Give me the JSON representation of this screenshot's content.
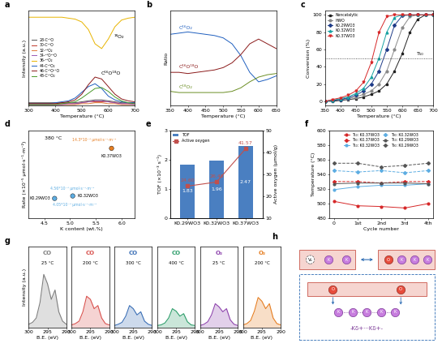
{
  "panel_labels": [
    "a",
    "b",
    "c",
    "d",
    "e",
    "f",
    "g",
    "h"
  ],
  "chart_data": [
    {
      "type": "line",
      "xlabel": "Temperature (°C)",
      "ylabel": "Intensity (a.u.)",
      "x": [
        300,
        325,
        350,
        375,
        400,
        425,
        450,
        475,
        500,
        525,
        550,
        575,
        600,
        625,
        650,
        675,
        700
      ],
      "xlim": [
        300,
        700
      ],
      "xticks": [
        300,
        400,
        500,
        600,
        700
      ],
      "ylim": [
        0,
        10
      ],
      "tick_labels": "x",
      "legend": "center left",
      "series": [
        {
          "name": "28-C¹⁶O",
          "color": "#555555",
          "values": [
            0.3,
            0.3,
            0.3,
            0.3,
            0.3,
            0.3,
            0.3,
            0.3,
            0.4,
            0.5,
            0.6,
            0.6,
            0.5,
            0.4,
            0.3,
            0.3,
            0.3
          ]
        },
        {
          "name": "30-C¹⁸O",
          "color": "#c0392b",
          "values": [
            0.2,
            0.2,
            0.2,
            0.2,
            0.2,
            0.2,
            0.2,
            0.2,
            0.3,
            0.4,
            0.4,
            0.4,
            0.4,
            0.3,
            0.2,
            0.2,
            0.2
          ]
        },
        {
          "name": "32-¹⁶O₂",
          "color": "#e07b39",
          "values": [
            0.1,
            0.1,
            0.1,
            0.1,
            0.1,
            0.1,
            0.1,
            0.1,
            0.2,
            0.2,
            0.3,
            0.3,
            0.2,
            0.2,
            0.1,
            0.1,
            0.1
          ]
        },
        {
          "name": "34-¹⁶O¹⁸O",
          "color": "#9b59b6",
          "values": [
            0.1,
            0.1,
            0.1,
            0.1,
            0.1,
            0.1,
            0.2,
            0.2,
            0.3,
            0.4,
            0.5,
            0.5,
            0.4,
            0.3,
            0.2,
            0.2,
            0.1
          ]
        },
        {
          "name": "36-¹⁸O₂",
          "color": "#e8b400",
          "values": [
            9.3,
            9.3,
            9.3,
            9.3,
            9.3,
            9.3,
            9.2,
            9.1,
            8.8,
            8.0,
            6.5,
            6.0,
            7.0,
            8.3,
            9.0,
            9.2,
            9.3
          ]
        },
        {
          "name": "44-C¹⁶O₂",
          "color": "#1f5fbf",
          "values": [
            0.2,
            0.2,
            0.2,
            0.2,
            0.3,
            0.4,
            0.5,
            0.8,
            1.4,
            2.0,
            2.3,
            1.8,
            1.0,
            0.6,
            0.4,
            0.3,
            0.3
          ]
        },
        {
          "name": "46-C¹⁶O¹⁸O",
          "color": "#8b1a1a",
          "values": [
            0.2,
            0.2,
            0.2,
            0.2,
            0.2,
            0.3,
            0.4,
            0.6,
            1.2,
            2.2,
            3.0,
            2.8,
            2.0,
            1.2,
            0.7,
            0.5,
            0.4
          ]
        },
        {
          "name": "48-C¹⁸O₂",
          "color": "#4a9a2a",
          "values": [
            0.1,
            0.1,
            0.1,
            0.1,
            0.1,
            0.2,
            0.3,
            0.4,
            0.8,
            1.3,
            1.8,
            1.9,
            1.5,
            0.9,
            0.5,
            0.3,
            0.2
          ]
        }
      ],
      "annotations": [
        {
          "text": "¹⁸O₂",
          "x": 640,
          "y": 7.0
        },
        {
          "text": "C¹⁶O¹⁸O",
          "x": 610,
          "y": 3.2
        }
      ]
    },
    {
      "type": "line",
      "xlabel": "Temperature (°C)",
      "ylabel": "Ratio",
      "x": [
        350,
        375,
        400,
        425,
        450,
        475,
        500,
        525,
        550,
        575,
        600,
        625,
        650
      ],
      "xlim": [
        350,
        650
      ],
      "xticks": [
        350,
        400,
        450,
        500,
        550,
        600,
        650
      ],
      "ylim": [
        0,
        80
      ],
      "tick_labels": "x",
      "series": [
        {
          "name": "C¹⁶O₂",
          "color": "#1f5fbf",
          "values": [
            60,
            61,
            62,
            61,
            60,
            59,
            57,
            52,
            42,
            28,
            20,
            22,
            25
          ]
        },
        {
          "name": "C¹⁶O¹⁸O",
          "color": "#8b1a1a",
          "values": [
            28,
            28,
            27,
            28,
            29,
            30,
            32,
            36,
            43,
            52,
            56,
            52,
            48
          ]
        },
        {
          "name": "C¹⁸O₂",
          "color": "#6b8e23",
          "values": [
            12,
            11,
            11,
            11,
            11,
            11,
            11,
            12,
            15,
            20,
            24,
            26,
            27
          ]
        }
      ]
    },
    {
      "type": "line",
      "xlabel": "Temperature (°C)",
      "ylabel": "Conversion (%)",
      "x": [
        350,
        375,
        400,
        425,
        450,
        475,
        500,
        525,
        550,
        575,
        600,
        625,
        650,
        675,
        700
      ],
      "xlim": [
        350,
        700
      ],
      "xticks": [
        350,
        400,
        450,
        500,
        550,
        600,
        650,
        700
      ],
      "ylim": [
        -5,
        105
      ],
      "yticks": [
        0,
        20,
        40,
        60,
        80,
        100
      ],
      "legend": "upper left",
      "hline": 50,
      "series": [
        {
          "name": "Noncatalytic",
          "color": "#222222",
          "marker": "square",
          "values": [
            0,
            0,
            1,
            2,
            3,
            5,
            8,
            12,
            20,
            35,
            55,
            80,
            95,
            100,
            100
          ]
        },
        {
          "name": "HWO",
          "color": "#888888",
          "marker": "circle",
          "values": [
            0,
            1,
            2,
            3,
            5,
            8,
            12,
            20,
            35,
            60,
            85,
            98,
            100,
            100,
            100
          ]
        },
        {
          "name": "K0.29WO3",
          "color": "#1f3c88",
          "marker": "diamond",
          "values": [
            0,
            1,
            2,
            4,
            7,
            12,
            20,
            35,
            60,
            88,
            99,
            100,
            100,
            100,
            100
          ]
        },
        {
          "name": "K0.32WO3",
          "color": "#17a2a2",
          "marker": "triangle",
          "values": [
            0,
            1,
            3,
            5,
            9,
            15,
            28,
            50,
            80,
            97,
            100,
            100,
            100,
            100,
            100
          ]
        },
        {
          "name": "K0.37WO3",
          "color": "#d62728",
          "marker": "triangle_down",
          "values": [
            0,
            2,
            4,
            7,
            12,
            22,
            45,
            80,
            98,
            100,
            100,
            100,
            100,
            100,
            100
          ]
        }
      ],
      "annotations": [
        {
          "text": "T₅₀",
          "x": 660,
          "y": 52
        }
      ]
    },
    {
      "type": "scatter",
      "xlabel": "K content (wt.%)",
      "ylabel": "Rate (×10⁻⁵ μmol·s⁻¹·m⁻²)",
      "x": [
        4.7,
        5.05,
        5.8
      ],
      "values": [
        4.05,
        4.56,
        14.3
      ],
      "value_labels": [
        "4.05*10⁻⁵ μmol·s⁻¹·m⁻²",
        "4.56*10⁻⁵ μmol·s⁻¹·m⁻²",
        "14.3*10⁻⁵ μmol·s⁻¹·m⁻²"
      ],
      "names": [
        "K0.29WO3",
        "K0.32WO3",
        "K0.37WO3"
      ],
      "colors": [
        "#5dade2",
        "#5dade2",
        "#e67e22"
      ],
      "xlim": [
        4.2,
        6.25
      ],
      "xticks": [
        4.5,
        {
          "value": 5.0,
          "label": "5.0"
        },
        5.5,
        {
          "value": 6.0,
          "label": "6.0"
        }
      ],
      "ylim": [
        0,
        18
      ],
      "tick_labels": "x",
      "annotations": [
        {
          "text": "380 °C",
          "x": 4.5,
          "y": 16
        }
      ]
    },
    {
      "type": "bar",
      "categories": [
        "K0.29WO3",
        "K0.32WO3",
        "K0.37WO3"
      ],
      "ylabel": "TOF (×10⁻³ s⁻¹)",
      "ylim": [
        0,
        3
      ],
      "yticks": [
        0,
        1,
        2,
        3
      ],
      "y2label": "Active oxygen (μmol/g)",
      "y2lim": [
        10,
        50
      ],
      "y2ticks": [
        10,
        20,
        30,
        40,
        50
      ],
      "legend": "upper left",
      "data_labels": true,
      "series": [
        {
          "name": "TOF",
          "type": "bar",
          "color": "#4a7fc1",
          "values": [
            1.83,
            1.96,
            2.47
          ]
        },
        {
          "name": "Active oxygen",
          "type": "line",
          "axis": "y2",
          "color": "#c0504d",
          "marker": "square",
          "values": [
            24.6,
            26.45,
            41.57
          ],
          "value_labels": [
            "24.60",
            "26.45",
            "41.57"
          ]
        }
      ]
    },
    {
      "type": "line",
      "xlabel": "Cycle number",
      "ylabel": "Temperature (°C)",
      "categories": [
        "0",
        "1st",
        "2nd",
        "3rd",
        "4th"
      ],
      "ylim": [
        480,
        600
      ],
      "yticks": [
        480,
        500,
        520,
        540,
        560,
        580,
        600
      ],
      "legend": "upper center",
      "series": [
        {
          "name": "T₅₀: K0.37WO3",
          "color": "#d62728",
          "marker": "circle",
          "values": [
            503,
            497,
            496,
            494,
            500
          ]
        },
        {
          "name": "T₉₀: K0.37WO3",
          "color": "#d62728",
          "marker": "diamond",
          "line_style": "dashed",
          "values": [
            530,
            530,
            528,
            530,
            530
          ]
        },
        {
          "name": "T₅₀: K0.32WO3",
          "color": "#5dade2",
          "marker": "circle",
          "values": [
            519,
            523,
            525,
            525,
            527
          ]
        },
        {
          "name": "T₉₀: K0.32WO3",
          "color": "#5dade2",
          "marker": "diamond",
          "line_style": "dashed",
          "values": [
            545,
            543,
            545,
            542,
            545
          ]
        },
        {
          "name": "T₅₀: K0.29WO3",
          "color": "#555555",
          "marker": "circle",
          "values": [
            527,
            528,
            528,
            528,
            527
          ]
        },
        {
          "name": "T₉₀: K0.29WO3",
          "color": "#555555",
          "marker": "diamond",
          "line_style": "dashed",
          "values": [
            555,
            555,
            550,
            552,
            555
          ]
        }
      ]
    },
    {
      "type": "line",
      "title": "CO",
      "subtitle": "25 °C",
      "xlabel": "B.E. (eV)",
      "ylabel": "Intensity (a.u.)",
      "x": [
        300,
        299,
        298,
        297,
        296,
        295,
        294,
        293,
        292,
        291,
        290
      ],
      "xlim": [
        300,
        290
      ],
      "xticks": [
        300,
        295,
        290
      ],
      "ylim": [
        0,
        13
      ],
      "tick_labels": "x",
      "color": "#808080",
      "values": [
        0.5,
        0.8,
        1.5,
        4,
        8.5,
        7,
        4.5,
        6,
        2.5,
        1,
        0.5
      ]
    },
    {
      "type": "line",
      "title": "CO",
      "subtitle": "200 °C",
      "xlabel": "B.E. (eV)",
      "x": [
        300,
        299,
        298,
        297,
        296,
        295,
        294,
        293,
        292,
        291,
        290
      ],
      "xlim": [
        300,
        290
      ],
      "xticks": [
        300,
        295,
        290
      ],
      "ylim": [
        0,
        13
      ],
      "tick_labels": "x",
      "color": "#d9534f",
      "values": [
        0.4,
        0.6,
        1,
        2.5,
        5,
        4.5,
        3,
        3.5,
        1.5,
        0.6,
        0.4
      ]
    },
    {
      "type": "line",
      "title": "CO",
      "subtitle": "300 °C",
      "xlabel": "B.E. (eV)",
      "x": [
        300,
        299,
        298,
        297,
        296,
        295,
        294,
        293,
        292,
        291,
        290
      ],
      "xlim": [
        300,
        290
      ],
      "xticks": [
        300,
        295,
        290
      ],
      "ylim": [
        0,
        13
      ],
      "tick_labels": "x",
      "color": "#3b6fb6",
      "values": [
        0.3,
        0.5,
        0.8,
        1.8,
        3.5,
        3,
        2,
        2.5,
        1,
        0.5,
        0.3
      ]
    },
    {
      "type": "line",
      "title": "CO",
      "subtitle": "400 °C",
      "xlabel": "B.E. (eV)",
      "x": [
        300,
        299,
        298,
        297,
        296,
        295,
        294,
        293,
        292,
        291,
        290
      ],
      "xlim": [
        300,
        290
      ],
      "xticks": [
        300,
        295,
        290
      ],
      "ylim": [
        0,
        13
      ],
      "tick_labels": "x",
      "color": "#2e9e6b",
      "values": [
        0.3,
        0.4,
        0.7,
        1.5,
        3,
        2.6,
        1.8,
        2.2,
        0.9,
        0.4,
        0.3
      ]
    },
    {
      "type": "line",
      "title": "O₂",
      "subtitle": "25 °C",
      "xlabel": "B.E. (eV)",
      "x": [
        300,
        299,
        298,
        297,
        296,
        295,
        294,
        293,
        292,
        291,
        290
      ],
      "xlim": [
        300,
        290
      ],
      "xticks": [
        300,
        295,
        290
      ],
      "ylim": [
        0,
        13
      ],
      "tick_labels": "x",
      "color": "#8e44ad",
      "values": [
        0.3,
        0.5,
        0.9,
        2,
        3.8,
        3.3,
        2.5,
        3,
        1.2,
        0.5,
        0.3
      ]
    },
    {
      "type": "line",
      "title": "O₂",
      "subtitle": "200 °C",
      "xlabel": "B.E. (eV)",
      "x": [
        300,
        299,
        298,
        297,
        296,
        295,
        294,
        293,
        292,
        291,
        290
      ],
      "xlim": [
        300,
        290
      ],
      "xticks": [
        300,
        295,
        290
      ],
      "ylim": [
        0,
        13
      ],
      "tick_labels": "x",
      "color": "#e67e22",
      "values": [
        0.4,
        0.6,
        1.1,
        2.6,
        4.8,
        4.2,
        3,
        3.8,
        1.5,
        0.6,
        0.4
      ]
    }
  ],
  "diagram": {
    "left_box": [
      "Vₒ",
      "K",
      "K"
    ],
    "right_box": [
      "O",
      "K",
      "K",
      "K"
    ],
    "bottom_box": {
      "sites": [
        "O",
        "O"
      ],
      "chain": [
        "K",
        "K",
        "K",
        "K",
        "K"
      ],
      "caption": "-Kδ+···Kδ+-"
    }
  }
}
